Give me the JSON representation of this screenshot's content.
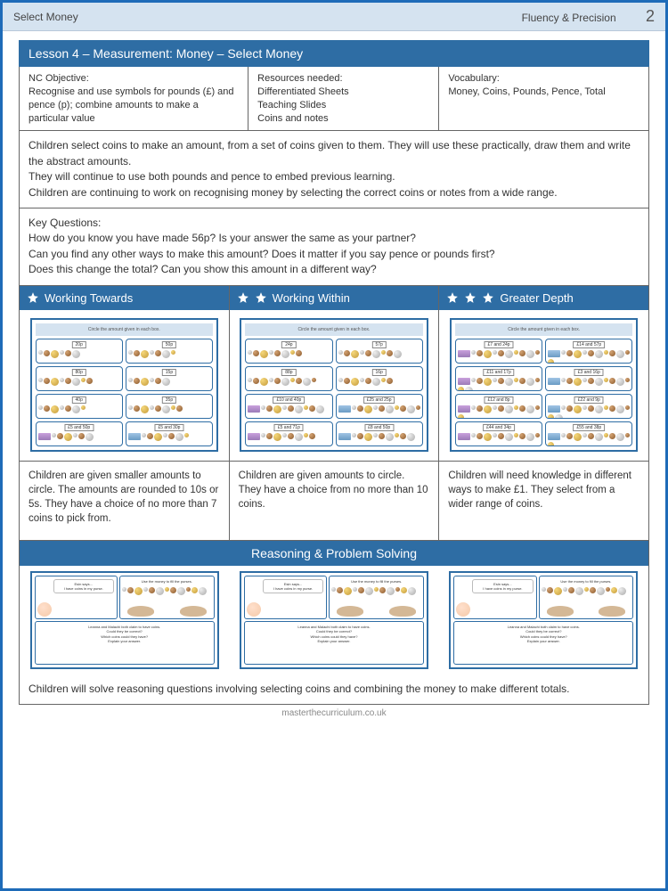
{
  "topbar": {
    "left": "Select Money",
    "right": "Fluency & Precision",
    "page": "2"
  },
  "lesson_title": "Lesson 4 – Measurement: Money – Select Money",
  "objective": {
    "head": "NC Objective:",
    "body": "Recognise and use symbols for pounds (£) and pence (p); combine amounts to make a particular value"
  },
  "resources": {
    "head": "Resources needed:",
    "lines": [
      "Differentiated Sheets",
      "Teaching Slides",
      "Coins and notes"
    ]
  },
  "vocab": {
    "head": "Vocabulary:",
    "body": "Money, Coins, Pounds, Pence, Total"
  },
  "description": "Children select coins to make an amount, from a set of coins given to them. They will use these practically, draw them and write the abstract amounts.\nThey will continue to use both pounds and pence to embed previous learning.\nChildren are continuing to work on recognising money by selecting the correct coins or notes from a wide range.",
  "key_questions": {
    "head": "Key Questions:",
    "body": "How do you know you have made 56p? Is your answer the same as your partner?\nCan you find any other ways to make this amount? Does it matter if you say pence or pounds first?\nDoes this change the total? Can you show this amount in a different way?"
  },
  "levels": [
    {
      "title": "Working Towards",
      "stars": 1,
      "boxes": [
        "20p",
        "50p",
        "80p",
        "15p",
        "40p",
        "35p",
        "£5 and 50p",
        "£5 and 30p"
      ],
      "desc": "Children are given smaller amounts to circle. The amounts are rounded to 10s or 5s. They have a choice of no more than 7 coins to pick from."
    },
    {
      "title": "Working Within",
      "stars": 2,
      "boxes": [
        "24p",
        "57p",
        "88p",
        "16p",
        "£10 and 40p",
        "£25 and 25p",
        "£5 and 71p",
        "£8 and 50p"
      ],
      "desc": "Children are given amounts to circle. They have a choice from no more than 10 coins."
    },
    {
      "title": "Greater Depth",
      "stars": 3,
      "boxes": [
        "£7 and 24p",
        "£14 and 57p",
        "£11 and 17p",
        "£3 and 16p",
        "£12 and 8p",
        "£22 and 9p",
        "£44 and 34p",
        "£55 and 38p"
      ],
      "desc": "Children will need knowledge in different ways to make £1. They select from a wider range of coins."
    }
  ],
  "rps": {
    "title": "Reasoning & Problem Solving",
    "desc": "Children will solve reasoning questions involving selecting coins and combining the money to make different totals."
  },
  "footer": "masterthecurriculum.co.uk",
  "colors": {
    "primary": "#2e6da4",
    "header_bg": "#d5e3f0",
    "border": "#666666"
  }
}
